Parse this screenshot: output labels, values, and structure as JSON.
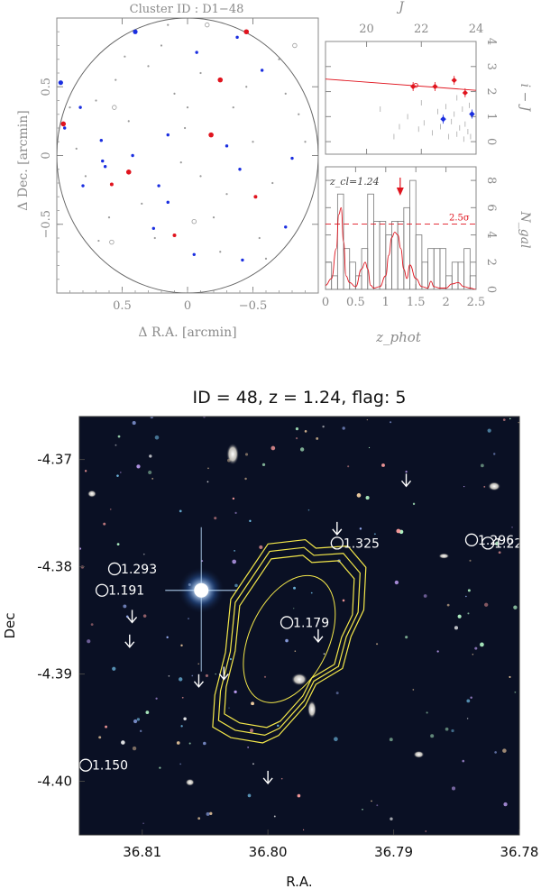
{
  "panel_title": "Cluster ID : D1−48",
  "chart_data": [
    {
      "type": "scatter",
      "name": "sky-distribution",
      "xlabel": "Δ R.A. [arcmin]",
      "ylabel": "Δ Dec. [arcmin]",
      "xlim": [
        1.0,
        -1.0
      ],
      "ylim": [
        -1.0,
        1.0
      ],
      "xticks": [
        "0.5",
        "0",
        "−0.5"
      ],
      "xtick_values": [
        0.5,
        0,
        -0.5
      ],
      "yticks": [
        "−0.5",
        "0",
        "0.5"
      ],
      "ytick_values": [
        -0.5,
        0,
        0.5
      ],
      "circle_radius": 1.0,
      "colors": {
        "red": "#e0141e",
        "blue": "#1a2ee0",
        "gray": "#9a9a9a"
      },
      "red_points": [
        [
          -0.45,
          0.9
        ],
        [
          -0.25,
          0.55
        ],
        [
          0.95,
          0.23
        ],
        [
          -0.18,
          0.15
        ],
        [
          0.45,
          -0.12
        ],
        [
          0.58,
          -0.21
        ],
        [
          0.1,
          -0.58
        ],
        [
          -0.52,
          -0.3
        ]
      ],
      "blue_points": [
        [
          0.4,
          0.9
        ],
        [
          0.97,
          0.53
        ],
        [
          -0.38,
          0.86
        ],
        [
          0.82,
          0.35
        ],
        [
          -0.07,
          0.75
        ],
        [
          -0.57,
          0.62
        ],
        [
          0.66,
          0.11
        ],
        [
          0.15,
          0.15
        ],
        [
          -0.3,
          0.07
        ],
        [
          0.94,
          0.2
        ],
        [
          0.65,
          -0.04
        ],
        [
          0.42,
          0.0
        ],
        [
          0.63,
          -0.08
        ],
        [
          -0.8,
          -0.02
        ],
        [
          -0.4,
          -0.1
        ],
        [
          0.8,
          -0.22
        ],
        [
          0.22,
          -0.22
        ],
        [
          0.26,
          -0.53
        ],
        [
          -0.75,
          -0.52
        ],
        [
          -0.05,
          -0.72
        ],
        [
          -0.42,
          -0.76
        ],
        [
          0.15,
          -0.34
        ]
      ],
      "gray_points": [
        [
          0.2,
          0.8
        ],
        [
          -0.1,
          0.6
        ],
        [
          0.55,
          0.55
        ],
        [
          -0.7,
          0.7
        ],
        [
          0.85,
          0.05
        ],
        [
          0.0,
          0.35
        ],
        [
          -0.5,
          0.1
        ],
        [
          0.35,
          -0.35
        ],
        [
          -0.2,
          -0.45
        ],
        [
          -0.65,
          -0.2
        ],
        [
          0.7,
          0.4
        ],
        [
          0.1,
          0.45
        ],
        [
          -0.35,
          0.35
        ],
        [
          0.45,
          0.25
        ],
        [
          -0.85,
          0.3
        ],
        [
          0.25,
          -0.6
        ],
        [
          -0.55,
          -0.6
        ],
        [
          0.6,
          -0.45
        ],
        [
          -0.1,
          -0.15
        ],
        [
          0.05,
          -0.05
        ],
        [
          -0.75,
          0.45
        ],
        [
          0.3,
          0.65
        ],
        [
          0.78,
          -0.15
        ],
        [
          -0.3,
          -0.28
        ],
        [
          0.9,
          0.35
        ],
        [
          -0.9,
          0.1
        ],
        [
          0.48,
          0.72
        ],
        [
          -0.45,
          0.5
        ],
        [
          0.15,
          0.95
        ],
        [
          -0.25,
          -0.7
        ],
        [
          0.68,
          -0.62
        ],
        [
          -0.6,
          -0.75
        ],
        [
          0.02,
          0.2
        ]
      ],
      "open_points": [
        [
          0.56,
          0.35
        ],
        [
          -0.05,
          -0.48
        ],
        [
          0.58,
          -0.63
        ],
        [
          -0.82,
          0.8
        ],
        [
          -0.15,
          0.95
        ]
      ]
    },
    {
      "type": "scatter",
      "name": "color-magnitude",
      "xlabel": "J",
      "ylabel": "i − J",
      "xlim": [
        18.5,
        24
      ],
      "ylim": [
        -0.5,
        4
      ],
      "xticks": [
        "20",
        "22",
        "24"
      ],
      "xtick_values": [
        20,
        22,
        24
      ],
      "yticks": [
        "0",
        "1",
        "2",
        "3",
        "4"
      ],
      "ytick_values": [
        0,
        1,
        2,
        3,
        4
      ],
      "red_sequence": {
        "x": [
          18.5,
          24
        ],
        "y": [
          2.5,
          2.05
        ]
      },
      "red_points": [
        [
          21.7,
          2.2
        ],
        [
          22.5,
          2.2
        ],
        [
          23.2,
          2.45
        ],
        [
          23.6,
          1.95
        ]
      ],
      "open_points": [
        [
          21.8,
          2.25
        ]
      ],
      "blue_points": [
        [
          22.8,
          0.9
        ],
        [
          23.85,
          1.1
        ]
      ],
      "gray_points": [
        [
          21.2,
          0.6
        ],
        [
          21.5,
          1.0
        ],
        [
          21.9,
          0.5
        ],
        [
          22.1,
          0.75
        ],
        [
          22.4,
          0.35
        ],
        [
          22.6,
          1.2
        ],
        [
          22.7,
          0.6
        ],
        [
          22.9,
          1.4
        ],
        [
          23.0,
          0.2
        ],
        [
          23.1,
          0.8
        ],
        [
          23.2,
          1.1
        ],
        [
          23.3,
          0.3
        ],
        [
          23.4,
          0.55
        ],
        [
          23.5,
          1.3
        ],
        [
          23.55,
          0.1
        ],
        [
          23.6,
          0.7
        ],
        [
          23.7,
          0.4
        ],
        [
          23.75,
          1.45
        ],
        [
          23.8,
          0.2
        ],
        [
          20.5,
          1.3
        ],
        [
          22.0,
          1.55
        ],
        [
          23.3,
          1.75
        ],
        [
          21.0,
          0.2
        ]
      ]
    },
    {
      "type": "bar",
      "name": "redshift-distribution",
      "xlabel": "z_phot",
      "ylabel": "N_gal",
      "xlim": [
        0,
        2.5
      ],
      "ylim": [
        0,
        9
      ],
      "xticks": [
        "0",
        "0.5",
        "1",
        "1.5",
        "2",
        "2.5"
      ],
      "xtick_values": [
        0,
        0.5,
        1,
        1.5,
        2,
        2.5
      ],
      "yticks": [
        "0",
        "2",
        "4",
        "6",
        "8"
      ],
      "ytick_values": [
        0,
        2,
        4,
        6,
        8
      ],
      "label": "z_cl=1.24",
      "threshold_label": "2.5σ",
      "threshold": 4.8,
      "arrow_z": 1.24,
      "bin_width": 0.1,
      "counts": [
        2,
        1,
        7,
        3,
        2,
        1,
        3,
        7,
        5,
        5,
        4,
        5,
        5,
        6,
        8,
        4,
        2,
        3,
        3,
        3,
        1,
        2,
        2,
        3,
        1
      ],
      "red_curve": {
        "z": [
          0.0,
          0.1,
          0.18,
          0.22,
          0.26,
          0.3,
          0.34,
          0.4,
          0.5,
          0.6,
          0.66,
          0.7,
          0.75,
          0.8,
          0.9,
          1.0,
          1.05,
          1.1,
          1.15,
          1.2,
          1.25,
          1.3,
          1.35,
          1.4,
          1.5,
          1.6,
          1.7,
          1.75,
          1.8,
          1.9,
          2.0,
          2.1,
          2.2,
          2.3,
          2.4,
          2.5
        ],
        "n": [
          0.3,
          0.8,
          3.0,
          5.5,
          6.0,
          3.5,
          1.0,
          0.5,
          0.2,
          1.5,
          2.0,
          1.5,
          0.3,
          0.1,
          0.2,
          1.0,
          2.5,
          3.8,
          4.2,
          4.0,
          3.0,
          1.5,
          0.8,
          1.8,
          0.8,
          0.2,
          0.1,
          0.6,
          0.2,
          0.1,
          0.1,
          0.4,
          0.5,
          0.2,
          0.1,
          0.0
        ]
      }
    },
    {
      "type": "scatter",
      "name": "cluster-image",
      "title": "ID = 48, z = 1.24, flag: 5",
      "xlabel": "R.A.",
      "ylabel": "Dec",
      "xlim": [
        36.815,
        36.78
      ],
      "ylim": [
        -4.405,
        -4.366
      ],
      "xticks": [
        "36.81",
        "36.80",
        "36.79",
        "36.78"
      ],
      "xtick_values": [
        36.81,
        36.8,
        36.79,
        36.78
      ],
      "yticks": [
        "-4.37",
        "-4.38",
        "-4.39",
        "-4.40"
      ],
      "ytick_values": [
        -4.37,
        -4.38,
        -4.39,
        -4.4
      ],
      "members": [
        {
          "label": "1.293",
          "ra": 36.8122,
          "dec": -4.3802
        },
        {
          "label": "1.191",
          "ra": 36.8132,
          "dec": -4.3822
        },
        {
          "label": "1.179",
          "ra": 36.7985,
          "dec": -4.3852
        },
        {
          "label": "1.325",
          "ra": 36.7945,
          "dec": -4.3778
        },
        {
          "label": "1.296",
          "ra": 36.7838,
          "dec": -4.3775
        },
        {
          "label": "1.22",
          "ra": 36.7825,
          "dec": -4.3778
        },
        {
          "label": "1.150",
          "ra": 36.8145,
          "dec": -4.3985
        }
      ],
      "arrows": [
        {
          "ra": 36.789,
          "dec": -4.3725
        },
        {
          "ra": 36.7945,
          "dec": -4.377
        },
        {
          "ra": 36.8108,
          "dec": -4.3852
        },
        {
          "ra": 36.811,
          "dec": -4.3875
        },
        {
          "ra": 36.8055,
          "dec": -4.3912
        },
        {
          "ra": 36.8035,
          "dec": -4.3905
        },
        {
          "ra": 36.796,
          "dec": -4.387
        },
        {
          "ra": 36.8,
          "dec": -4.4002
        }
      ]
    }
  ]
}
